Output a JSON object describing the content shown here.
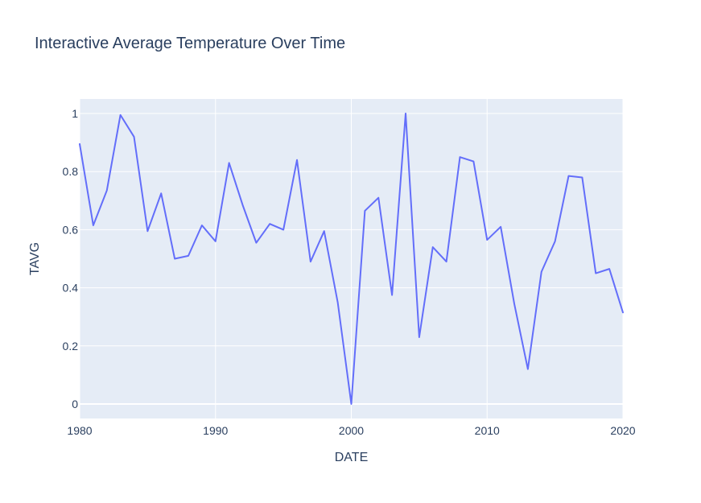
{
  "colors": {
    "plot_bg": "#E5ECF6",
    "grid": "#FFFFFF",
    "line": "#636EFA",
    "text": "#2A3F5F"
  },
  "chart_data": {
    "type": "line",
    "title": "Interactive Average Temperature Over Time",
    "xlabel": "DATE",
    "ylabel": "TAVG",
    "xlim": [
      1980,
      2020
    ],
    "ylim": [
      -0.05,
      1.05
    ],
    "x_ticks": [
      1980,
      1990,
      2000,
      2010,
      2020
    ],
    "y_ticks": [
      0,
      0.2,
      0.4,
      0.6,
      0.8,
      1
    ],
    "x_tick_labels": [
      "1980",
      "1990",
      "2000",
      "2010",
      "2020"
    ],
    "y_tick_labels": [
      "0",
      "0.2",
      "0.4",
      "0.6",
      "0.8",
      "1"
    ],
    "grid": true,
    "series": [
      {
        "x": [
          1980,
          1981,
          1982,
          1983,
          1984,
          1985,
          1986,
          1987,
          1988,
          1989,
          1990,
          1991,
          1992,
          1993,
          1994,
          1995,
          1996,
          1997,
          1998,
          1999,
          2000,
          2001,
          2002,
          2003,
          2004,
          2005,
          2006,
          2007,
          2008,
          2009,
          2010,
          2011,
          2012,
          2013,
          2014,
          2015,
          2016,
          2017,
          2018,
          2019,
          2020
        ],
        "y": [
          0.895,
          0.615,
          0.735,
          0.995,
          0.92,
          0.595,
          0.725,
          0.5,
          0.51,
          0.615,
          0.56,
          0.83,
          0.685,
          0.555,
          0.62,
          0.6,
          0.84,
          0.49,
          0.595,
          0.35,
          0.0,
          0.665,
          0.71,
          0.375,
          1.0,
          0.23,
          0.54,
          0.49,
          0.85,
          0.835,
          0.565,
          0.61,
          0.345,
          0.12,
          0.455,
          0.56,
          0.785,
          0.78,
          0.45,
          0.465,
          0.315
        ]
      }
    ]
  }
}
